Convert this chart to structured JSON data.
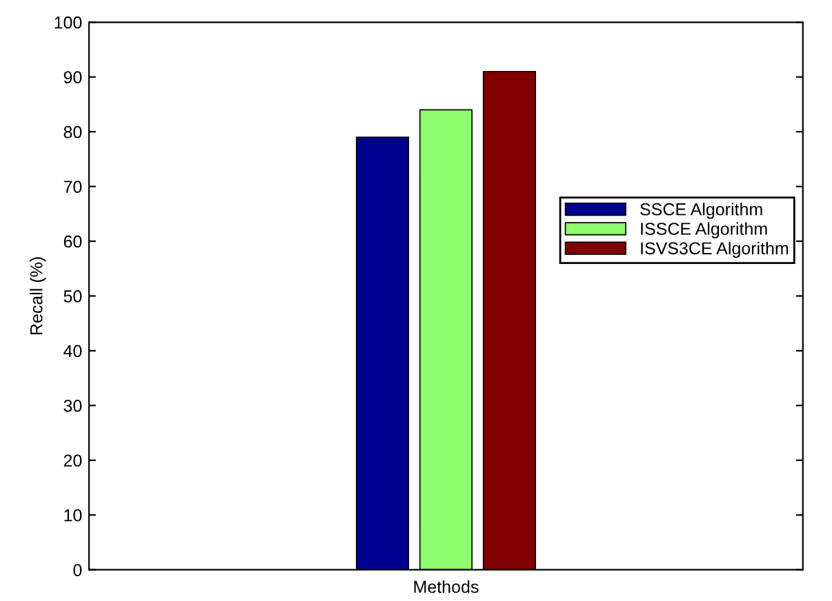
{
  "chart_data": {
    "type": "bar",
    "xlabel": "Methods",
    "ylabel": "Recall (%)",
    "categories": [
      null
    ],
    "series": [
      {
        "name": "SSCE Algorithm",
        "color": "#00008f",
        "values": [
          79
        ]
      },
      {
        "name": "ISSCE Algorithm",
        "color": "#8fff6f",
        "values": [
          84
        ]
      },
      {
        "name": "ISVS3CE Algorithm",
        "color": "#800000",
        "values": [
          91
        ]
      }
    ],
    "ylim": [
      0,
      100
    ],
    "yticks": [
      0,
      10,
      20,
      30,
      40,
      50,
      60,
      70,
      80,
      90,
      100
    ],
    "grid": false,
    "legend": "right"
  }
}
